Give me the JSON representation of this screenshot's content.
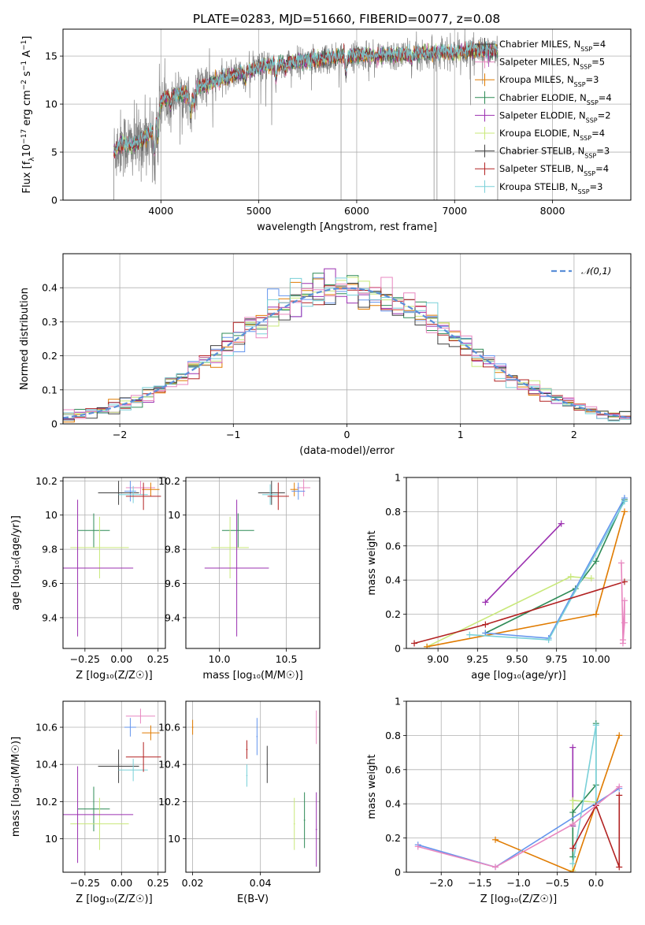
{
  "figure": {
    "title": "PLATE=0283, MJD=51660, FIBERID=0077, z=0.08"
  },
  "model_colors": [
    "#6495ed",
    "#e07b00",
    "#2e8b57",
    "#9b30b0",
    "#c8e87a",
    "#404040",
    "#b22222",
    "#79d0d8",
    "#e887c0"
  ],
  "models": [
    {
      "label": "Chabrier MILES, N",
      "sub": "SSP",
      "suffix": "=4",
      "color": "#404040"
    },
    {
      "label": "Salpeter MILES, N",
      "sub": "SSP",
      "suffix": "=5",
      "color": "#e887c0"
    },
    {
      "label": "Kroupa MILES, N",
      "sub": "SSP",
      "suffix": "=3",
      "color": "#e07b00"
    },
    {
      "label": "Chabrier ELODIE, N",
      "sub": "SSP",
      "suffix": "=4",
      "color": "#2e8b57"
    },
    {
      "label": "Salpeter ELODIE, N",
      "sub": "SSP",
      "suffix": "=2",
      "color": "#9b30b0"
    },
    {
      "label": "Kroupa ELODIE, N",
      "sub": "SSP",
      "suffix": "=4",
      "color": "#c8e87a"
    },
    {
      "label": "Chabrier STELIB, N",
      "sub": "SSP",
      "suffix": "=3",
      "color": "#404040"
    },
    {
      "label": "Salpeter STELIB, N",
      "sub": "SSP",
      "suffix": "=4",
      "color": "#b22222"
    },
    {
      "label": "Kroupa STELIB, N",
      "sub": "SSP",
      "suffix": "=3",
      "color": "#79d0d8"
    }
  ],
  "chart_data": [
    {
      "id": "spectrum",
      "type": "line",
      "xlabel": "wavelength [Angstrom, rest frame]",
      "ylabel_parts": [
        "Flux [f",
        "λ",
        "10",
        "−17",
        " erg cm",
        "−2",
        " s",
        "−1",
        " A",
        "−1",
        "]"
      ],
      "xlim": [
        3000,
        8800
      ],
      "ylim": [
        0,
        17.8
      ],
      "xticks": [
        4000,
        5000,
        6000,
        7000,
        8000
      ],
      "yticks": [
        0,
        5,
        10,
        15
      ],
      "x_range_data": [
        3520,
        7440
      ],
      "continuum_knots": {
        "x": [
          3520,
          3600,
          3700,
          3800,
          3900,
          4000,
          4100,
          4200,
          4300,
          4400,
          4600,
          4800,
          5000,
          5200,
          5400,
          5600,
          5800,
          6000,
          6200,
          6400,
          6600,
          6800,
          7000,
          7200,
          7440
        ],
        "y": [
          5.0,
          6.0,
          5.6,
          6.2,
          7.0,
          10.3,
          10.8,
          11.2,
          10.6,
          11.8,
          12.5,
          13.2,
          13.8,
          14.2,
          14.4,
          14.6,
          14.9,
          15.1,
          15.0,
          15.1,
          15.2,
          15.4,
          15.3,
          15.6,
          15.5
        ]
      },
      "absorption_features": [
        {
          "x": 3934,
          "depth": 4.5
        },
        {
          "x": 3969,
          "depth": 4.0
        },
        {
          "x": 4102,
          "depth": 1.5
        },
        {
          "x": 4304,
          "depth": 2.0
        },
        {
          "x": 4340,
          "depth": 1.5
        },
        {
          "x": 4861,
          "depth": 1.2
        },
        {
          "x": 5175,
          "depth": 2.0
        },
        {
          "x": 5270,
          "depth": 1.0
        },
        {
          "x": 5890,
          "depth": 2.5
        },
        {
          "x": 6563,
          "depth": 1.0
        }
      ],
      "data_spikes": [
        5840,
        6790,
        6820
      ],
      "legend_position": "upper right"
    },
    {
      "id": "residuals",
      "type": "histogram",
      "xlabel": "(data-model)/error",
      "ylabel": "Normed distribution",
      "xlim": [
        -2.5,
        2.5
      ],
      "ylim": [
        0,
        0.5
      ],
      "xticks": [
        -2,
        -1,
        0,
        1,
        2
      ],
      "xtick_labels": [
        "−2",
        "−1",
        "0",
        "1",
        "2"
      ],
      "yticks": [
        0.0,
        0.1,
        0.2,
        0.3,
        0.4
      ],
      "bin_width": 0.1,
      "reference_curve": {
        "label": "𝒩(0,1)",
        "mean": 0,
        "sigma": 1,
        "color": "#5b8fd8"
      },
      "legend_position": "upper right"
    },
    {
      "id": "age_vs_Z",
      "type": "errorbar",
      "xlabel": "Z [log₁₀(Z/Z☉)]",
      "ylabel": "age  [log₁₀(age/yr)]",
      "xlim": [
        -0.4,
        0.3
      ],
      "ylim": [
        9.22,
        10.22
      ],
      "xticks": [
        -0.25,
        0.0,
        0.25
      ],
      "xtick_labels": [
        "−0.25",
        "0.00",
        "0.25"
      ],
      "yticks": [
        9.4,
        9.6,
        9.8,
        10.0,
        10.2
      ],
      "points": [
        {
          "x": 0.13,
          "xerr": 0.1,
          "y": 10.16,
          "yerr": 0.04,
          "color": "#e887c0"
        },
        {
          "x": 0.2,
          "xerr": 0.06,
          "y": 10.15,
          "yerr": 0.04,
          "color": "#e07b00"
        },
        {
          "x": 0.06,
          "xerr": 0.04,
          "y": 10.14,
          "yerr": 0.06,
          "color": "#6495ed"
        },
        {
          "x": -0.02,
          "xerr": 0.14,
          "y": 10.13,
          "yerr": 0.07,
          "color": "#404040"
        },
        {
          "x": 0.08,
          "xerr": 0.1,
          "y": 10.12,
          "yerr": 0.05,
          "color": "#79d0d8"
        },
        {
          "x": 0.15,
          "xerr": 0.12,
          "y": 10.11,
          "yerr": 0.08,
          "color": "#b22222"
        },
        {
          "x": -0.19,
          "xerr": 0.11,
          "y": 9.91,
          "yerr": 0.1,
          "color": "#2e8b57"
        },
        {
          "x": -0.15,
          "xerr": 0.2,
          "y": 9.81,
          "yerr": 0.18,
          "color": "#c8e87a"
        },
        {
          "x": -0.3,
          "xerr": 0.38,
          "y": 9.69,
          "yerr": 0.4,
          "color": "#9b30b0"
        }
      ]
    },
    {
      "id": "age_vs_mass",
      "type": "errorbar",
      "xlabel": "mass [log₁₀(M/M☉)]",
      "ylabel": "",
      "xlim": [
        9.75,
        10.75
      ],
      "ylim": [
        9.22,
        10.22
      ],
      "xticks": [
        10.0,
        10.5
      ],
      "xtick_labels": [
        "10.0",
        "10.5"
      ],
      "yticks": [
        9.4,
        9.6,
        9.8,
        10.0,
        10.2
      ],
      "points": [
        {
          "x": 10.63,
          "xerr": 0.05,
          "y": 10.16,
          "yerr": 0.05,
          "color": "#e887c0"
        },
        {
          "x": 10.56,
          "xerr": 0.03,
          "y": 10.15,
          "yerr": 0.04,
          "color": "#e07b00"
        },
        {
          "x": 10.59,
          "xerr": 0.05,
          "y": 10.14,
          "yerr": 0.05,
          "color": "#6495ed"
        },
        {
          "x": 10.39,
          "xerr": 0.1,
          "y": 10.13,
          "yerr": 0.07,
          "color": "#404040"
        },
        {
          "x": 10.38,
          "xerr": 0.06,
          "y": 10.12,
          "yerr": 0.06,
          "color": "#79d0d8"
        },
        {
          "x": 10.44,
          "xerr": 0.08,
          "y": 10.11,
          "yerr": 0.08,
          "color": "#b22222"
        },
        {
          "x": 10.14,
          "xerr": 0.12,
          "y": 9.91,
          "yerr": 0.1,
          "color": "#2e8b57"
        },
        {
          "x": 10.08,
          "xerr": 0.14,
          "y": 9.81,
          "yerr": 0.18,
          "color": "#c8e87a"
        },
        {
          "x": 10.13,
          "xerr": 0.24,
          "y": 9.69,
          "yerr": 0.4,
          "color": "#9b30b0"
        }
      ]
    },
    {
      "id": "weight_vs_age",
      "type": "line",
      "xlabel": "age  [log₁₀(age/yr)]",
      "ylabel": "mass weight",
      "xlim": [
        8.8,
        10.22
      ],
      "ylim": [
        0,
        1.0
      ],
      "xticks": [
        9.0,
        9.25,
        9.5,
        9.75,
        10.0
      ],
      "xtick_labels": [
        "9.00",
        "9.25",
        "9.50",
        "9.75",
        "10.00"
      ],
      "yticks": [
        0.0,
        0.2,
        0.4,
        0.6,
        0.8,
        1.0
      ],
      "series": [
        {
          "color": "#9b30b0",
          "x": [
            9.3,
            9.78
          ],
          "y": [
            0.27,
            0.73
          ]
        },
        {
          "color": "#c8e87a",
          "x": [
            8.93,
            9.84,
            9.97
          ],
          "y": [
            0.01,
            0.42,
            0.41
          ]
        },
        {
          "color": "#2e8b57",
          "x": [
            9.3,
            9.87,
            10.0,
            10.18
          ],
          "y": [
            0.09,
            0.35,
            0.51,
            0.87
          ]
        },
        {
          "color": "#e07b00",
          "x": [
            8.93,
            10.0,
            10.18
          ],
          "y": [
            0.01,
            0.2,
            0.8
          ]
        },
        {
          "color": "#6495ed",
          "x": [
            9.3,
            9.7,
            10.18
          ],
          "y": [
            0.09,
            0.06,
            0.88
          ]
        },
        {
          "color": "#79d0d8",
          "x": [
            9.2,
            9.7,
            10.18
          ],
          "y": [
            0.08,
            0.05,
            0.86
          ]
        },
        {
          "color": "#b22222",
          "x": [
            8.85,
            9.3,
            10.18
          ],
          "y": [
            0.03,
            0.14,
            0.39
          ]
        },
        {
          "color": "#e887c0",
          "x": [
            10.16,
            10.17,
            10.18,
            10.18,
            10.17
          ],
          "y": [
            0.5,
            0.05,
            0.28,
            0.15,
            0.03
          ]
        }
      ]
    },
    {
      "id": "mass_vs_Z",
      "type": "errorbar",
      "xlabel": "Z [log₁₀(Z/Z☉)]",
      "ylabel": "mass [log₁₀(M/M☉)]",
      "xlim": [
        -0.4,
        0.3
      ],
      "ylim": [
        9.82,
        10.74
      ],
      "xticks": [
        -0.25,
        0.0,
        0.25
      ],
      "xtick_labels": [
        "−0.25",
        "0.00",
        "0.25"
      ],
      "yticks": [
        10.0,
        10.2,
        10.4,
        10.6
      ],
      "points": [
        {
          "x": 0.13,
          "xerr": 0.1,
          "y": 10.66,
          "yerr": 0.04,
          "color": "#e887c0"
        },
        {
          "x": 0.2,
          "xerr": 0.06,
          "y": 10.57,
          "yerr": 0.04,
          "color": "#e07b00"
        },
        {
          "x": 0.06,
          "xerr": 0.04,
          "y": 10.6,
          "yerr": 0.05,
          "color": "#6495ed"
        },
        {
          "x": -0.02,
          "xerr": 0.14,
          "y": 10.39,
          "yerr": 0.09,
          "color": "#404040"
        },
        {
          "x": 0.08,
          "xerr": 0.1,
          "y": 10.37,
          "yerr": 0.06,
          "color": "#79d0d8"
        },
        {
          "x": 0.15,
          "xerr": 0.12,
          "y": 10.44,
          "yerr": 0.08,
          "color": "#b22222"
        },
        {
          "x": -0.19,
          "xerr": 0.11,
          "y": 10.16,
          "yerr": 0.12,
          "color": "#2e8b57"
        },
        {
          "x": -0.15,
          "xerr": 0.2,
          "y": 10.08,
          "yerr": 0.14,
          "color": "#c8e87a"
        },
        {
          "x": -0.3,
          "xerr": 0.38,
          "y": 10.13,
          "yerr": 0.26,
          "color": "#9b30b0"
        }
      ]
    },
    {
      "id": "mass_vs_ebv",
      "type": "errorbar",
      "xlabel": "E(B-V)",
      "ylabel": "",
      "xlim": [
        0.018,
        0.0575
      ],
      "ylim": [
        9.82,
        10.74
      ],
      "xticks": [
        0.02,
        0.04
      ],
      "xtick_labels": [
        "0.02",
        "0.04"
      ],
      "yticks": [
        10.0,
        10.2,
        10.4,
        10.6
      ],
      "points": [
        {
          "x": 0.02,
          "xerr": 0.0002,
          "y": 10.6,
          "yerr": 0.04,
          "color": "#e07b00"
        },
        {
          "x": 0.036,
          "xerr": 0.0002,
          "y": 10.48,
          "yerr": 0.05,
          "color": "#b22222"
        },
        {
          "x": 0.036,
          "xerr": 0.0002,
          "y": 10.34,
          "yerr": 0.06,
          "color": "#79d0d8"
        },
        {
          "x": 0.039,
          "xerr": 0.0002,
          "y": 10.55,
          "yerr": 0.1,
          "color": "#6495ed"
        },
        {
          "x": 0.042,
          "xerr": 0.0002,
          "y": 10.4,
          "yerr": 0.1,
          "color": "#404040"
        },
        {
          "x": 0.05,
          "xerr": 0.0002,
          "y": 10.08,
          "yerr": 0.14,
          "color": "#c8e87a"
        },
        {
          "x": 0.053,
          "xerr": 0.0002,
          "y": 10.1,
          "yerr": 0.15,
          "color": "#2e8b57"
        },
        {
          "x": 0.0565,
          "xerr": 0.0002,
          "y": 10.05,
          "yerr": 0.2,
          "color": "#9b30b0"
        },
        {
          "x": 0.0565,
          "xerr": 0.0002,
          "y": 10.6,
          "yerr": 0.09,
          "color": "#e887c0"
        }
      ]
    },
    {
      "id": "weight_vs_Z",
      "type": "line",
      "xlabel": "Z [log₁₀(Z/Z☉)]",
      "ylabel": "mass weight",
      "xlim": [
        -2.45,
        0.45
      ],
      "ylim": [
        0,
        1.0
      ],
      "xticks": [
        -2.0,
        -1.5,
        -1.0,
        -0.5,
        0.0
      ],
      "xtick_labels": [
        "−2.0",
        "−1.5",
        "−1.0",
        "−0.5",
        "0.0"
      ],
      "yticks": [
        0.0,
        0.2,
        0.4,
        0.6,
        0.8,
        1.0
      ],
      "series": [
        {
          "color": "#9b30b0",
          "x": [
            -0.3,
            -0.3
          ],
          "y": [
            0.73,
            0.27
          ]
        },
        {
          "color": "#c8e87a",
          "x": [
            -0.3,
            -0.3,
            0.0
          ],
          "y": [
            0.01,
            0.42,
            0.41
          ]
        },
        {
          "color": "#2e8b57",
          "x": [
            -0.3,
            -0.3,
            0.0,
            0.0
          ],
          "y": [
            0.09,
            0.35,
            0.51,
            0.87
          ]
        },
        {
          "color": "#e07b00",
          "x": [
            -1.3,
            -0.3,
            0.3
          ],
          "y": [
            0.19,
            0.0,
            0.8
          ]
        },
        {
          "color": "#6495ed",
          "x": [
            -2.3,
            -1.3,
            0.3
          ],
          "y": [
            0.16,
            0.03,
            0.49
          ]
        },
        {
          "color": "#79d0d8",
          "x": [
            -0.3,
            0.0,
            0.0
          ],
          "y": [
            0.05,
            0.86,
            0.4
          ]
        },
        {
          "color": "#b22222",
          "x": [
            -0.3,
            0.0,
            0.3,
            0.3
          ],
          "y": [
            0.14,
            0.39,
            0.03,
            0.45
          ]
        },
        {
          "color": "#e887c0",
          "x": [
            -2.3,
            -1.3,
            -0.3,
            0.3
          ],
          "y": [
            0.15,
            0.03,
            0.28,
            0.5
          ]
        }
      ]
    }
  ]
}
